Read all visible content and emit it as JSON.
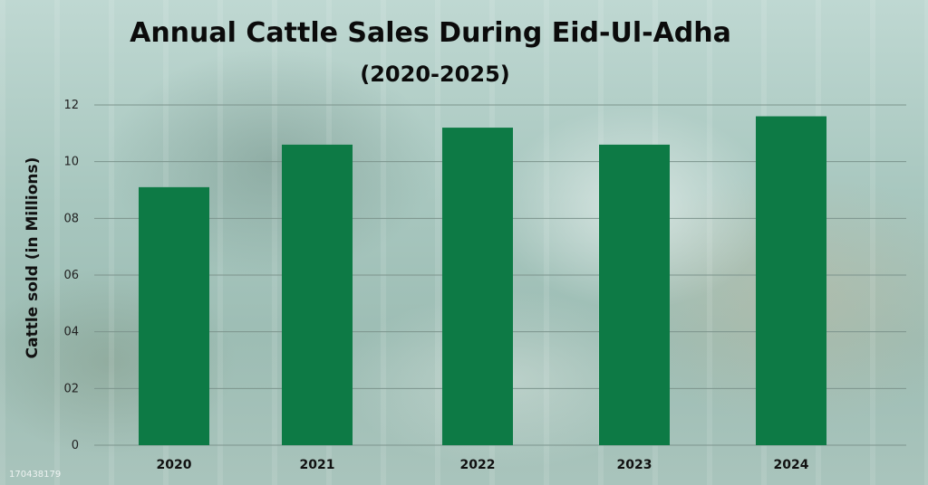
{
  "watermark": "170438179",
  "chart_data": {
    "type": "bar",
    "title": "Annual Cattle Sales During Eid-Ul-Adha",
    "subtitle": "(2020-2025)",
    "xlabel": "",
    "ylabel": "Cattle sold (in Millions)",
    "categories": [
      "2020",
      "2021",
      "2022",
      "2023",
      "2024"
    ],
    "values": [
      9.1,
      10.6,
      11.2,
      10.6,
      11.6
    ],
    "ylim": [
      0,
      12
    ],
    "yticks": [
      0,
      2,
      4,
      6,
      8,
      10,
      12
    ],
    "ytick_labels": [
      "0",
      "02",
      "04",
      "06",
      "08",
      "10",
      "12"
    ],
    "grid": true,
    "legend": "none",
    "bar_color": "#0d7a45",
    "grid_color": "#7d948d"
  }
}
